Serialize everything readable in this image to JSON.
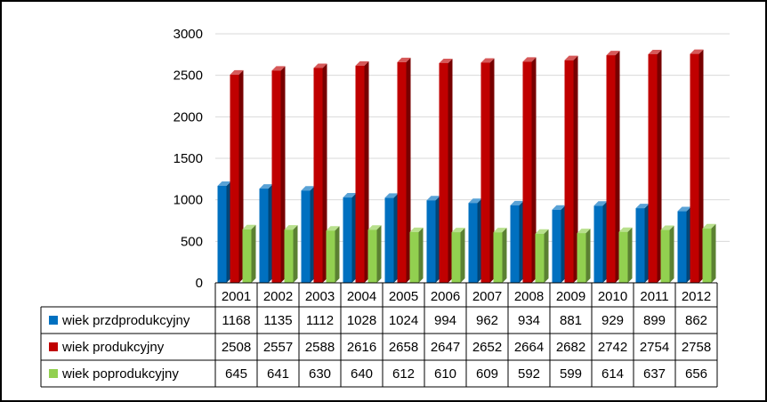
{
  "chart_data": {
    "type": "bar",
    "categories": [
      "2001",
      "2002",
      "2003",
      "2004",
      "2005",
      "2006",
      "2007",
      "2008",
      "2009",
      "2010",
      "2011",
      "2012"
    ],
    "series": [
      {
        "name": "wiek przdprodukcyjny",
        "color": "#0070c0",
        "values": [
          1168,
          1135,
          1112,
          1028,
          1024,
          994,
          962,
          934,
          881,
          929,
          899,
          862
        ]
      },
      {
        "name": "wiek produkcyjny",
        "color": "#c00000",
        "values": [
          2508,
          2557,
          2588,
          2616,
          2658,
          2647,
          2652,
          2664,
          2682,
          2742,
          2754,
          2758
        ]
      },
      {
        "name": "wiek poprodukcyjny",
        "color": "#92d050",
        "values": [
          645,
          641,
          630,
          640,
          612,
          610,
          609,
          592,
          599,
          614,
          637,
          656
        ]
      }
    ],
    "yticks": [
      0,
      500,
      1000,
      1500,
      2000,
      2500,
      3000
    ],
    "ylim": [
      0,
      3000
    ],
    "grid": true,
    "legend": "data-table",
    "style": "3d-column"
  }
}
